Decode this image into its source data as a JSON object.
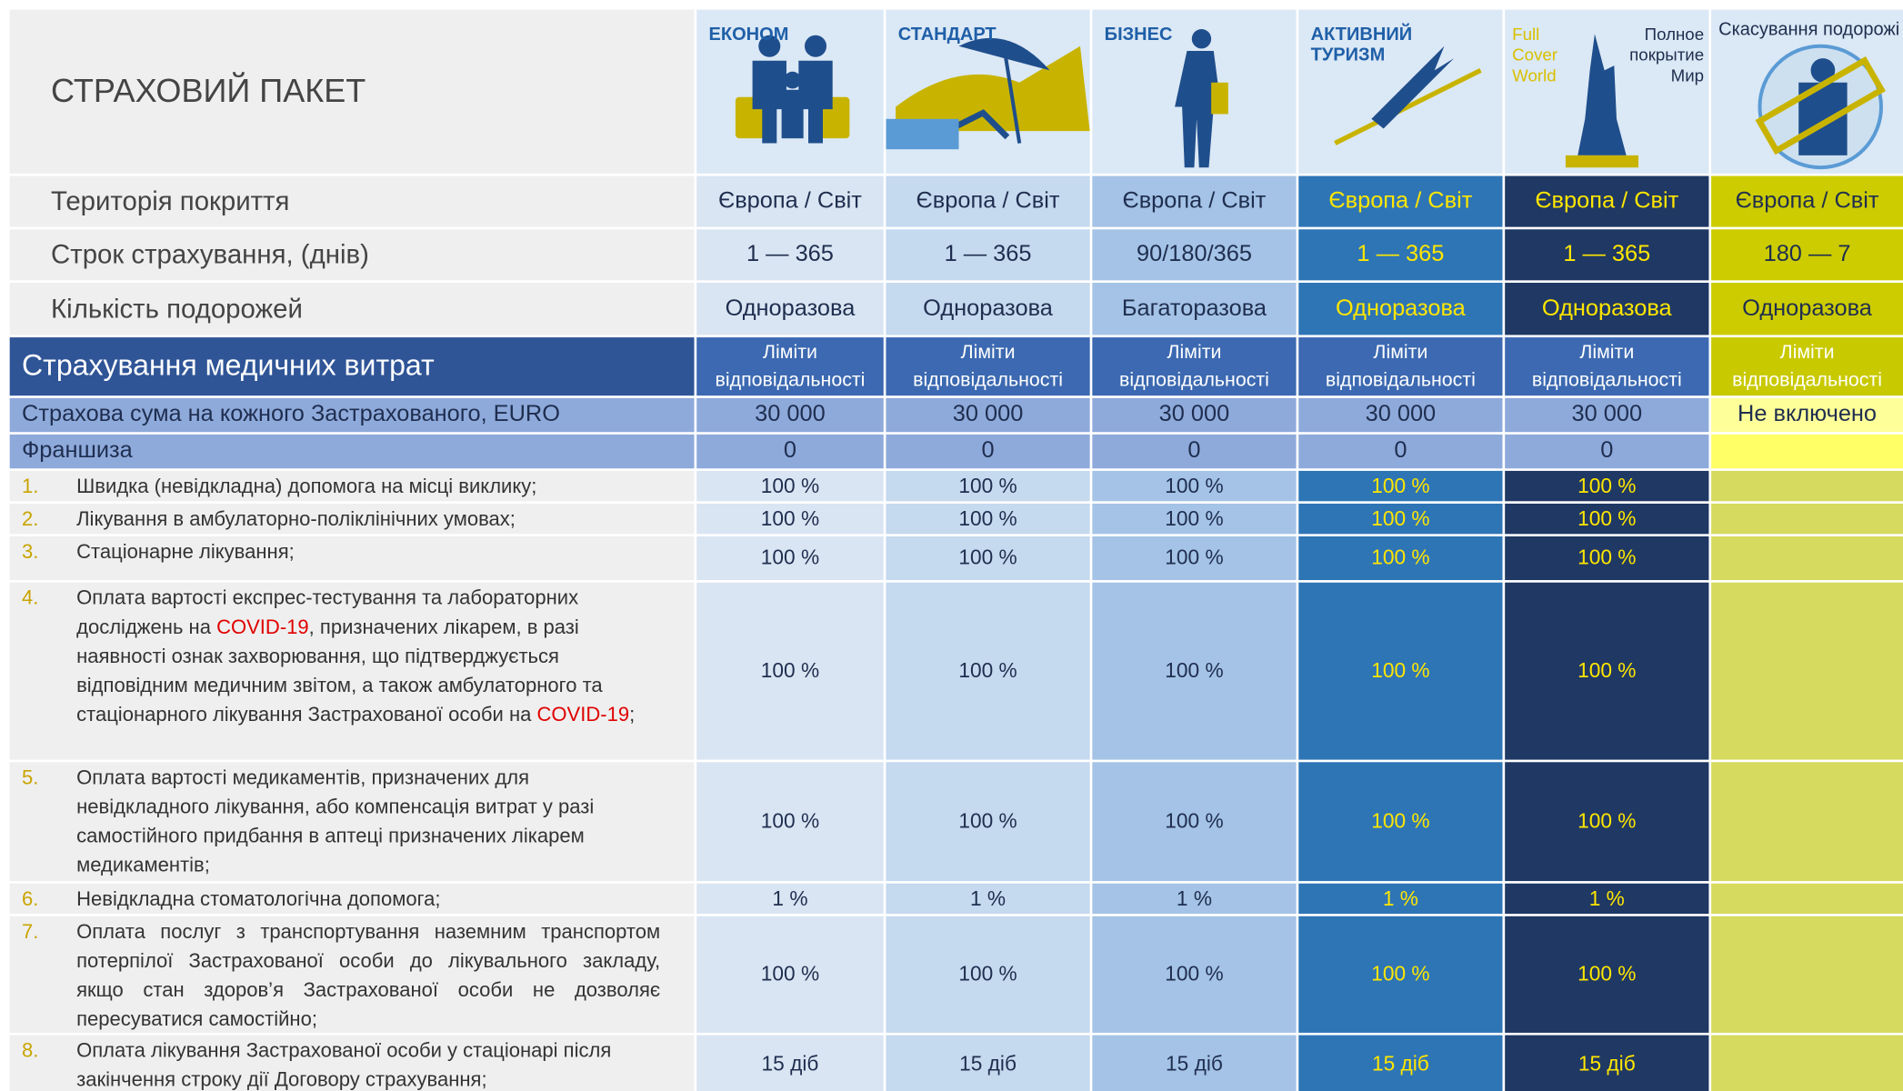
{
  "header": {
    "title": "СТРАХОВИЙ ПАКЕТ",
    "plans": [
      {
        "name": "ЕКОНОМ"
      },
      {
        "name": "СТАНДАРТ"
      },
      {
        "name": "БІЗНЕС"
      },
      {
        "name": "АКТИВНИЙ ТУРИЗМ"
      },
      {
        "name": "Full Cover World",
        "subtitle": "Полное покрытие Мир"
      },
      {
        "name": "Скасування подорожі"
      }
    ]
  },
  "summary_rows": [
    {
      "label": "Територія покриття",
      "values": [
        "Європа / Світ",
        "Європа / Світ",
        "Європа / Світ",
        "Європа / Світ",
        "Європа / Світ",
        "Європа / Світ"
      ]
    },
    {
      "label": "Строк страхування, (днів)",
      "values": [
        "1 — 365",
        "1 — 365",
        "90/180/365",
        "1 — 365",
        "1 — 365",
        "180 — 7"
      ]
    },
    {
      "label": "Кількість подорожей",
      "values": [
        "Одноразова",
        "Одноразова",
        "Багаторазова",
        "Одноразова",
        "Одноразова",
        "Одноразова"
      ]
    }
  ],
  "section": {
    "title": "Страхування медичних витрат",
    "column_headers": [
      "Ліміти відповідальності",
      "Ліміти відповідальності",
      "Ліміти відповідальності",
      "Ліміти відповідальності",
      "Ліміти відповідальності",
      "Ліміти відповідальності"
    ]
  },
  "sum_insured": {
    "label": "Страхова сума на кожного Застрахованого, EURO",
    "values": [
      "30 000",
      "30 000",
      "30 000",
      "30 000",
      "30 000",
      "Не включено"
    ]
  },
  "franchise": {
    "label": "Франшиза",
    "values": [
      "0",
      "0",
      "0",
      "0",
      "0"
    ]
  },
  "items": [
    {
      "number": "1.",
      "text": [
        {
          "text": "Швидка (невідкладна) допомога на місці виклику;"
        }
      ],
      "values": [
        "100 %",
        "100 %",
        "100 %",
        "100 %",
        "100 %"
      ]
    },
    {
      "number": "2.",
      "text": [
        {
          "text": "Лікування в амбулаторно-поліклінічних умовах;"
        }
      ],
      "values": [
        "100 %",
        "100 %",
        "100 %",
        "100 %",
        "100 %"
      ]
    },
    {
      "number": "3.",
      "text": [
        {
          "text": "Стаціонарне лікування;"
        }
      ],
      "values": [
        "100 %",
        "100 %",
        "100 %",
        "100 %",
        "100 %"
      ]
    },
    {
      "number": "4.",
      "text": [
        {
          "text": "Оплата вартості експрес-тестування та лабораторних досліджень на "
        },
        {
          "text": "COVID-19",
          "color": "#e00000"
        },
        {
          "text": ", призначених лікарем, в разі наявності ознак захворювання, що підтверджується відповідним медичним звітом, а також амбулаторного та стаціонарного лікування Застрахованої особи на "
        },
        {
          "text": "COVID-19",
          "color": "#e00000"
        },
        {
          "text": ";"
        }
      ],
      "values": [
        "100 %",
        "100 %",
        "100 %",
        "100 %",
        "100 %"
      ]
    },
    {
      "number": "5.",
      "text": [
        {
          "text": "Оплата вартості медикаментів, призначених для невідкладного лікування, або компенсація витрат у разі самостійного придбання в аптеці призначених лікарем медикаментів;"
        }
      ],
      "values": [
        "100 %",
        "100 %",
        "100 %",
        "100 %",
        "100 %"
      ]
    },
    {
      "number": "6.",
      "text": [
        {
          "text": "Невідкладна стоматологічна допомога;"
        }
      ],
      "values": [
        "1 %",
        "1 %",
        "1 %",
        "1 %",
        "1 %"
      ]
    },
    {
      "number": "7.",
      "text": [
        {
          "text": "Оплата послуг з транспортування наземним транспортом потерпілої Застрахованої особи до лікувального закладу, якщо стан здоров’я Застрахованої особи не дозволяє пересуватися самостійно;"
        }
      ],
      "values": [
        "100 %",
        "100 %",
        "100 %",
        "100 %",
        "100 %"
      ]
    },
    {
      "number": "8.",
      "text": [
        {
          "text": "Оплата лікування Застрахованої особи у стаціонарі після закінчення строку дії Договору страхування;"
        }
      ],
      "values": [
        "15 діб",
        "15 діб",
        "15 діб",
        "15 діб",
        "15 діб"
      ]
    }
  ]
}
